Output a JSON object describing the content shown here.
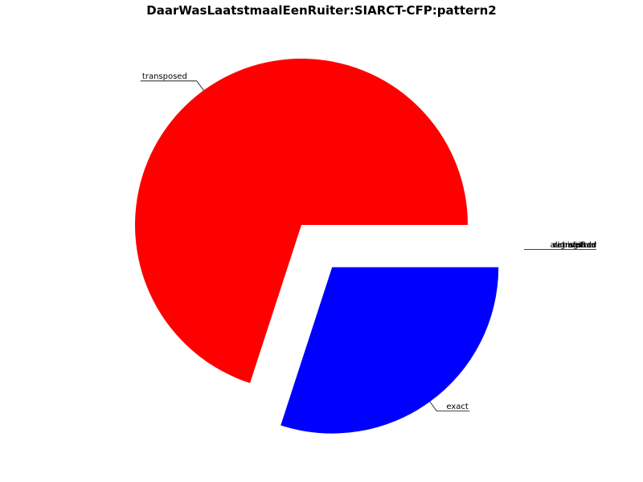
{
  "chart_data": {
    "type": "pie",
    "title": "DaarWasLaatstmaalEenRuiter:SIARCT-CFP:pattern2",
    "slices": [
      {
        "label": "exact",
        "value": 0.3,
        "color": "#0000ff",
        "explode": true
      },
      {
        "label": "transposed",
        "value": 0.7,
        "color": "#ff0000",
        "explode": false
      },
      {
        "label": "tuned",
        "value": 0,
        "color": "#000000",
        "explode": false
      },
      {
        "label": "shifted",
        "value": 0,
        "color": "#000000",
        "explode": false
      },
      {
        "label": "augmented",
        "value": 0,
        "color": "#000000",
        "explode": false
      },
      {
        "label": "diminished",
        "value": 0,
        "color": "#000000",
        "explode": false
      },
      {
        "label": "inverted",
        "value": 0,
        "color": "#000000",
        "explode": false
      },
      {
        "label": "retrograde",
        "value": 0,
        "color": "#000000",
        "explode": false
      },
      {
        "label": "other",
        "value": 0,
        "color": "#000000",
        "explode": false
      }
    ],
    "start_angle": "counter-clockwise from 3 o'clock, exploded exact slice first",
    "legend": "none"
  }
}
